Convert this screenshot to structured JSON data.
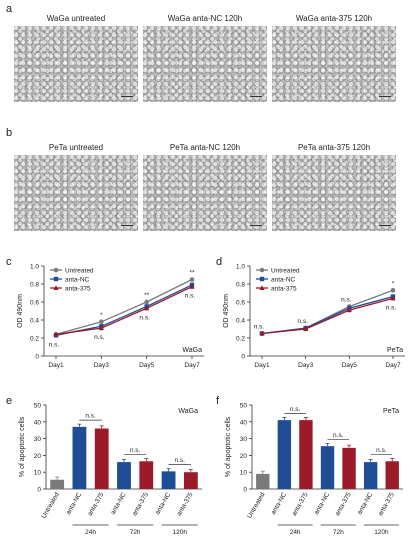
{
  "panels": {
    "a": "a",
    "b": "b",
    "c": "c",
    "d": "d",
    "e": "e",
    "f": "f"
  },
  "micrographs_a": [
    "WaGa untreated",
    "WaGa anta-NC 120h",
    "WaGa anta-375 120h"
  ],
  "micrographs_b": [
    "PeTa untreated",
    "PeTa anta-NC 120h",
    "PeTa anta-375 120h"
  ],
  "colors": {
    "untreated": "#7a7a7a",
    "nc": "#1f4e96",
    "a375": "#9b1b2b"
  },
  "chart_data": [
    {
      "type": "line",
      "panel": "c",
      "cell_line": "WaGa",
      "ylabel": "OD 490nm",
      "categories": [
        "Day1",
        "Day3",
        "Day5",
        "Day7"
      ],
      "ylim": [
        0,
        1.0
      ],
      "yticks": [
        "0",
        "0.2",
        "0.4",
        "0.6",
        "0.8",
        "1.0"
      ],
      "series": [
        {
          "name": "Untreated",
          "values": [
            0.24,
            0.38,
            0.6,
            0.85
          ]
        },
        {
          "name": "anta-NC",
          "values": [
            0.23,
            0.33,
            0.55,
            0.79
          ]
        },
        {
          "name": "anta-375",
          "values": [
            0.24,
            0.31,
            0.53,
            0.77
          ]
        }
      ],
      "annotations": [
        {
          "day": 0,
          "top": "",
          "bottom": "n.s."
        },
        {
          "day": 1,
          "top": "*",
          "bottom": "n.s."
        },
        {
          "day": 2,
          "top": "**",
          "bottom": "n.s."
        },
        {
          "day": 3,
          "top": "**",
          "bottom": "n.s."
        }
      ]
    },
    {
      "type": "line",
      "panel": "d",
      "cell_line": "PeTa",
      "ylabel": "OD 490nm",
      "categories": [
        "Day1",
        "Day3",
        "Day5",
        "Day7"
      ],
      "ylim": [
        0,
        1.0
      ],
      "yticks": [
        "0",
        "0.2",
        "0.4",
        "0.6",
        "0.8",
        "1.0"
      ],
      "series": [
        {
          "name": "Untreated",
          "values": [
            0.25,
            0.31,
            0.55,
            0.73
          ]
        },
        {
          "name": "anta-NC",
          "values": [
            0.25,
            0.31,
            0.53,
            0.66
          ]
        },
        {
          "name": "anta-375",
          "values": [
            0.25,
            0.3,
            0.51,
            0.64
          ]
        }
      ],
      "annotations": [
        {
          "day": 0,
          "top": "n.s.",
          "bottom": ""
        },
        {
          "day": 1,
          "top": "n.s.",
          "bottom": ""
        },
        {
          "day": 2,
          "top": "n.s.",
          "bottom": ""
        },
        {
          "day": 3,
          "top": "*",
          "bottom": "n.s."
        }
      ]
    },
    {
      "type": "bar",
      "panel": "e",
      "cell_line": "WaGa",
      "ylabel": "% of apoptotic cells",
      "ylim": [
        0,
        50
      ],
      "yticks": [
        "0",
        "10",
        "20",
        "30",
        "40",
        "50"
      ],
      "categories": [
        "Untreated",
        "anta-NC",
        "anta-375",
        "anta-NC",
        "anta-375",
        "anta-NC",
        "anta-375"
      ],
      "values": [
        5.5,
        37,
        36,
        16,
        16.5,
        10.5,
        10
      ],
      "bar_colors": [
        "untreated",
        "nc",
        "a375",
        "nc",
        "a375",
        "nc",
        "a375"
      ],
      "groups": [
        "24h",
        "72h",
        "120h"
      ],
      "sig": [
        "n.s.",
        "n.s.",
        "n.s."
      ]
    },
    {
      "type": "bar",
      "panel": "f",
      "cell_line": "PeTa",
      "ylabel": "% of apoptotic cells",
      "ylim": [
        0,
        50
      ],
      "yticks": [
        "0",
        "10",
        "20",
        "30",
        "40",
        "50"
      ],
      "categories": [
        "Untreated",
        "anta-NC",
        "anta-375",
        "anta-NC",
        "anta-375",
        "anta-NC",
        "anta-375"
      ],
      "values": [
        9,
        41,
        41,
        25.5,
        24.5,
        16,
        16.5
      ],
      "bar_colors": [
        "untreated",
        "nc",
        "a375",
        "nc",
        "a375",
        "nc",
        "a375"
      ],
      "groups": [
        "24h",
        "72h",
        "120h"
      ],
      "sig": [
        "n.s.",
        "n.s.",
        "n.s."
      ]
    }
  ]
}
